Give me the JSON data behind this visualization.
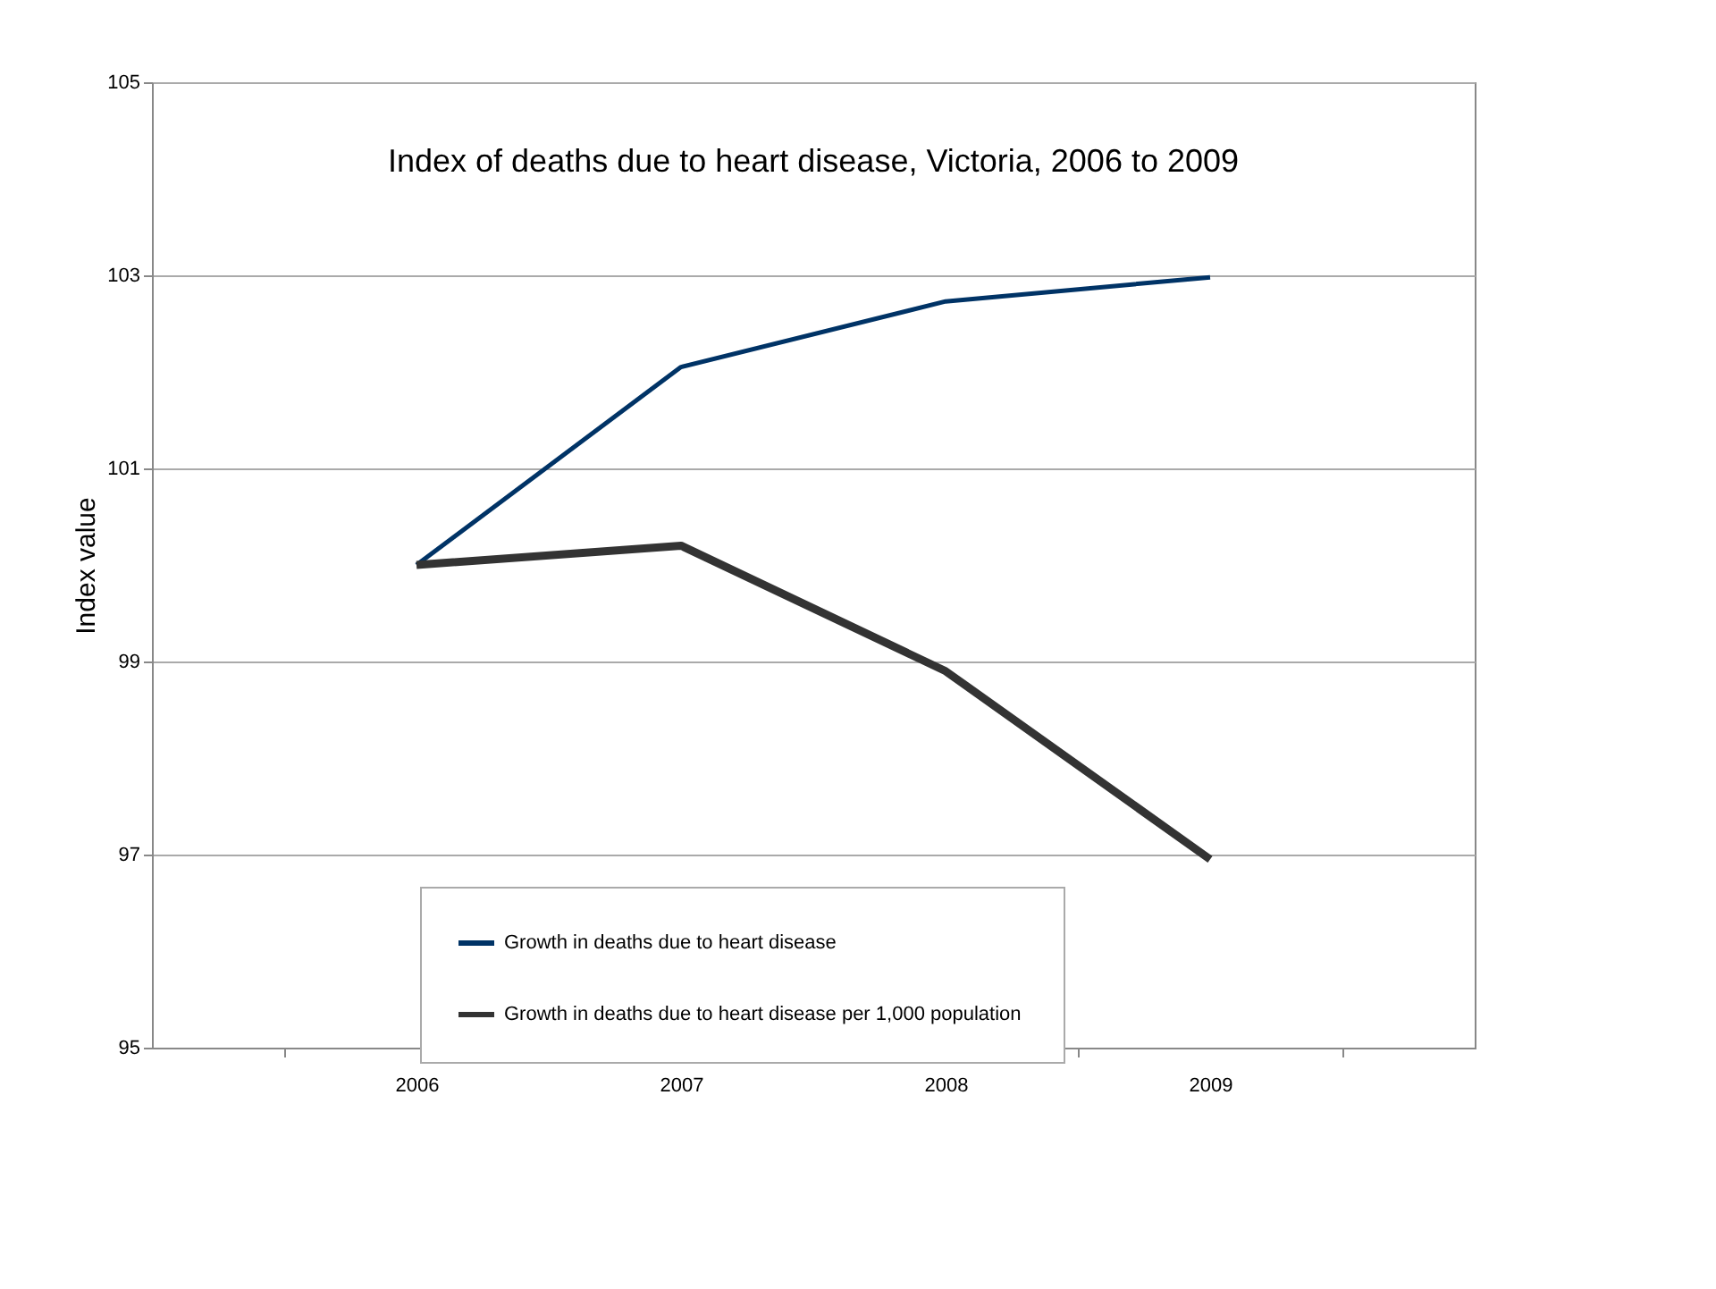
{
  "chart_data": {
    "type": "line",
    "title": "Index of deaths due to heart disease, Victoria, 2006 to 2009",
    "ylabel": "Index value",
    "categories": [
      "2006",
      "2007",
      "2008",
      "2009"
    ],
    "series": [
      {
        "name": "Growth in deaths due to heart disease",
        "color": "#003366",
        "values": [
          100,
          102.05,
          102.73,
          102.98
        ]
      },
      {
        "name": "Growth in  deaths due to heart disease per 1,000 population",
        "color": "#333333",
        "values": [
          100,
          100.2,
          98.9,
          96.95
        ]
      }
    ],
    "ylim": [
      95,
      105
    ],
    "yticks": [
      95,
      97,
      99,
      101,
      103,
      105
    ],
    "grid": "y",
    "legend": "bottom",
    "marker": "none",
    "line_style": "solid"
  }
}
